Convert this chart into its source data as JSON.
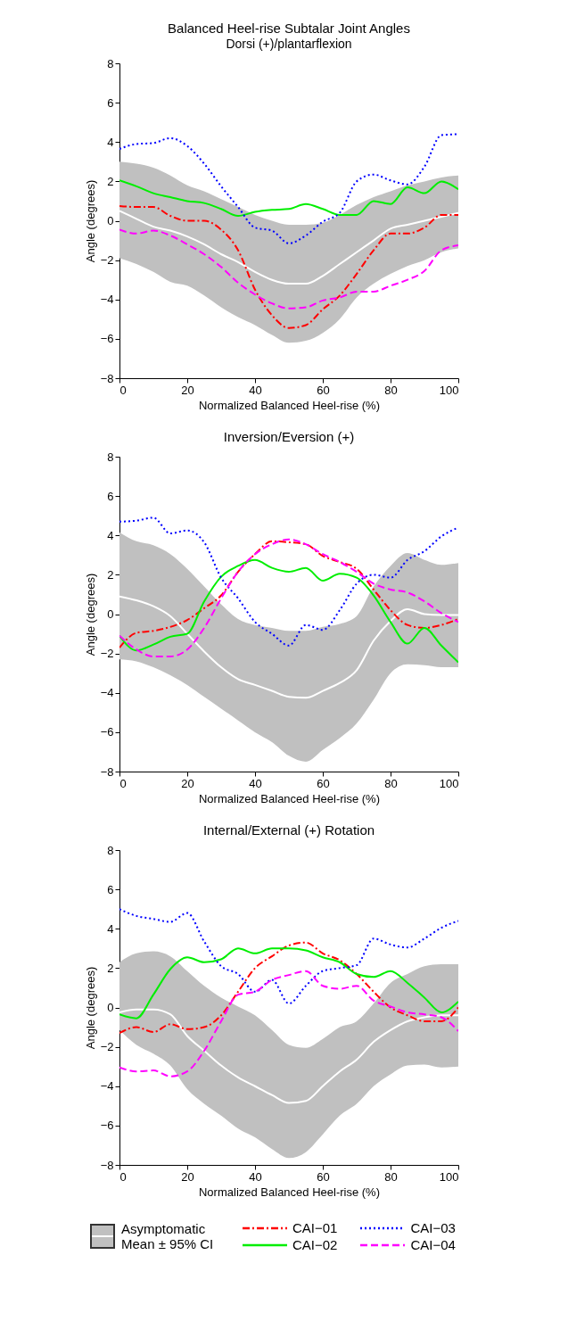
{
  "chart_data": [
    {
      "type": "line",
      "title": "Balanced Heel-rise Subtalar Joint Angles",
      "subtitle": "Dorsi (+)/plantarflexion",
      "xlabel": "Normalized Balanced Heel-rise (%)",
      "ylabel": "Angle (degrees)",
      "xlim": [
        0,
        100
      ],
      "ylim": [
        -8,
        8
      ],
      "xticks": [
        0,
        20,
        40,
        60,
        80,
        100
      ],
      "yticks": [
        -8,
        -6,
        -4,
        -2,
        0,
        2,
        4,
        6,
        8
      ],
      "legend": "bottom",
      "x": [
        0,
        5,
        10,
        15,
        20,
        25,
        30,
        35,
        40,
        45,
        50,
        55,
        60,
        65,
        70,
        75,
        80,
        85,
        90,
        95,
        100
      ],
      "series": [
        {
          "name": "Asymptomatic Mean ± 95% CI",
          "color": "#ffffff",
          "line_style": "solid",
          "values": [
            0.5,
            0.1,
            -0.3,
            -0.5,
            -0.8,
            -1.2,
            -1.7,
            -2.1,
            -2.6,
            -3.0,
            -3.2,
            -3.2,
            -2.8,
            -2.2,
            -1.6,
            -1.0,
            -0.4,
            -0.2,
            0.0,
            0.2,
            0.4
          ],
          "lower": [
            -1.9,
            -2.2,
            -2.6,
            -3.1,
            -3.3,
            -3.8,
            -4.4,
            -4.9,
            -5.3,
            -5.8,
            -6.2,
            -6.1,
            -5.7,
            -5.0,
            -3.9,
            -3.2,
            -2.7,
            -2.3,
            -2.0,
            -1.6,
            -1.4
          ],
          "upper": [
            3.0,
            2.9,
            2.7,
            2.3,
            1.8,
            1.5,
            1.1,
            0.7,
            0.3,
            0.0,
            -0.2,
            -0.2,
            -0.1,
            0.3,
            0.8,
            1.2,
            1.5,
            1.8,
            2.0,
            2.2,
            2.3
          ]
        },
        {
          "name": "CAI−01",
          "color": "#ff0000",
          "line_style": "dashdot",
          "values": [
            0.75,
            0.7,
            0.7,
            0.25,
            0.0,
            0.0,
            -0.45,
            -1.5,
            -3.5,
            -4.8,
            -5.45,
            -5.3,
            -4.5,
            -3.8,
            -2.7,
            -1.5,
            -0.65,
            -0.65,
            -0.35,
            0.3,
            0.3
          ]
        },
        {
          "name": "CAI−02",
          "color": "#00ee00",
          "line_style": "solid",
          "values": [
            2.05,
            1.75,
            1.4,
            1.2,
            1.0,
            0.9,
            0.6,
            0.25,
            0.45,
            0.55,
            0.6,
            0.85,
            0.6,
            0.3,
            0.3,
            1.0,
            0.85,
            1.7,
            1.4,
            2.0,
            1.6
          ]
        },
        {
          "name": "CAI−03",
          "color": "#0000ff",
          "line_style": "dotted",
          "values": [
            3.65,
            3.9,
            3.95,
            4.2,
            3.8,
            2.9,
            1.75,
            0.7,
            -0.35,
            -0.5,
            -1.15,
            -0.75,
            -0.05,
            0.4,
            2.0,
            2.35,
            2.05,
            1.85,
            2.75,
            4.35,
            4.4
          ]
        },
        {
          "name": "CAI−04",
          "color": "#ff00ff",
          "line_style": "dashed",
          "values": [
            -0.45,
            -0.65,
            -0.5,
            -0.75,
            -1.2,
            -1.7,
            -2.35,
            -3.15,
            -3.75,
            -4.2,
            -4.45,
            -4.4,
            -4.05,
            -3.9,
            -3.6,
            -3.6,
            -3.3,
            -3.0,
            -2.55,
            -1.5,
            -1.25
          ]
        }
      ]
    },
    {
      "type": "line",
      "title": "Inversion/Eversion (+)",
      "xlabel": "Normalized Balanced Heel-rise (%)",
      "ylabel": "Angle (degrees)",
      "xlim": [
        0,
        100
      ],
      "ylim": [
        -8,
        8
      ],
      "xticks": [
        0,
        20,
        40,
        60,
        80,
        100
      ],
      "yticks": [
        -8,
        -6,
        -4,
        -2,
        0,
        2,
        4,
        6,
        8
      ],
      "legend": "bottom",
      "x": [
        0,
        5,
        10,
        15,
        20,
        25,
        30,
        35,
        40,
        45,
        50,
        55,
        60,
        65,
        70,
        75,
        80,
        85,
        90,
        95,
        100
      ],
      "series": [
        {
          "name": "Asymptomatic Mean ± 95% CI",
          "color": "#ffffff",
          "line_style": "solid",
          "values": [
            0.9,
            0.7,
            0.4,
            -0.1,
            -1.0,
            -1.9,
            -2.7,
            -3.3,
            -3.6,
            -3.9,
            -4.2,
            -4.25,
            -3.9,
            -3.5,
            -2.85,
            -1.35,
            -0.35,
            0.25,
            0.0,
            -0.05,
            -0.05
          ],
          "lower": [
            -2.3,
            -2.4,
            -2.7,
            -3.1,
            -3.6,
            -4.2,
            -4.8,
            -5.4,
            -6.0,
            -6.5,
            -7.2,
            -7.5,
            -6.9,
            -6.3,
            -5.55,
            -4.35,
            -3.0,
            -2.55,
            -2.6,
            -2.7,
            -2.7
          ],
          "upper": [
            4.15,
            3.7,
            3.5,
            3.05,
            2.3,
            1.4,
            0.5,
            -0.25,
            -0.55,
            -0.7,
            -0.85,
            -0.85,
            -0.65,
            -0.5,
            -0.1,
            1.4,
            2.45,
            3.1,
            2.75,
            2.5,
            2.6
          ]
        },
        {
          "name": "CAI−01",
          "color": "#ff0000",
          "line_style": "dashdot",
          "values": [
            -1.7,
            -0.95,
            -0.85,
            -0.65,
            -0.3,
            0.3,
            0.95,
            2.15,
            3.05,
            3.7,
            3.65,
            3.55,
            2.95,
            2.65,
            2.3,
            1.25,
            0.2,
            -0.55,
            -0.7,
            -0.55,
            -0.25
          ]
        },
        {
          "name": "CAI−02",
          "color": "#00ee00",
          "line_style": "solid",
          "values": [
            -1.1,
            -1.85,
            -1.55,
            -1.15,
            -1.0,
            0.65,
            1.9,
            2.45,
            2.75,
            2.35,
            2.15,
            2.35,
            1.7,
            2.05,
            1.85,
            0.95,
            -0.4,
            -1.5,
            -0.7,
            -1.6,
            -2.45
          ]
        },
        {
          "name": "CAI−03",
          "color": "#0000ff",
          "line_style": "dotted",
          "values": [
            4.7,
            4.75,
            4.9,
            4.1,
            4.25,
            3.65,
            1.85,
            0.8,
            -0.4,
            -1.0,
            -1.6,
            -0.55,
            -0.8,
            0.2,
            1.55,
            2.0,
            1.85,
            2.75,
            3.2,
            3.95,
            4.4
          ]
        },
        {
          "name": "CAI−04",
          "color": "#ff00ff",
          "line_style": "dashed",
          "values": [
            -1.1,
            -1.8,
            -2.15,
            -2.15,
            -1.8,
            -0.7,
            0.8,
            2.15,
            3.05,
            3.55,
            3.8,
            3.55,
            3.05,
            2.65,
            2.15,
            1.55,
            1.25,
            1.1,
            0.65,
            0.05,
            -0.4
          ]
        }
      ]
    },
    {
      "type": "line",
      "title": "Internal/External (+) Rotation",
      "xlabel": "Normalized Balanced Heel-rise (%)",
      "ylabel": "Angle (degrees)",
      "xlim": [
        0,
        100
      ],
      "ylim": [
        -8,
        8
      ],
      "xticks": [
        0,
        20,
        40,
        60,
        80,
        100
      ],
      "yticks": [
        -8,
        -6,
        -4,
        -2,
        0,
        2,
        4,
        6,
        8
      ],
      "legend": "bottom",
      "x": [
        0,
        5,
        10,
        15,
        20,
        25,
        30,
        35,
        40,
        45,
        50,
        55,
        60,
        65,
        70,
        75,
        80,
        85,
        90,
        95,
        100
      ],
      "series": [
        {
          "name": "Asymptomatic Mean ± 95% CI",
          "color": "#ffffff",
          "line_style": "solid",
          "values": [
            -0.25,
            -0.1,
            -0.1,
            -0.35,
            -1.45,
            -2.2,
            -2.95,
            -3.55,
            -4.0,
            -4.45,
            -4.85,
            -4.75,
            -4.0,
            -3.25,
            -2.65,
            -1.75,
            -1.15,
            -0.7,
            -0.5,
            -0.4,
            -0.4
          ],
          "lower": [
            -1.15,
            -1.9,
            -2.35,
            -2.95,
            -4.15,
            -4.9,
            -5.5,
            -6.15,
            -6.6,
            -7.2,
            -7.65,
            -7.35,
            -6.45,
            -5.5,
            -4.9,
            -4.0,
            -3.4,
            -2.95,
            -2.9,
            -3.05,
            -3.0
          ],
          "upper": [
            2.3,
            2.75,
            2.85,
            2.6,
            1.85,
            1.1,
            0.5,
            0.05,
            -0.4,
            -1.15,
            -1.9,
            -2.05,
            -1.6,
            -1.0,
            -0.7,
            0.2,
            1.25,
            1.7,
            2.1,
            2.2,
            2.2
          ]
        },
        {
          "name": "CAI−01",
          "color": "#ff0000",
          "line_style": "dashdot",
          "values": [
            -1.3,
            -1.0,
            -1.25,
            -0.85,
            -1.1,
            -1.0,
            -0.4,
            0.8,
            2.0,
            2.6,
            3.15,
            3.3,
            2.75,
            2.4,
            1.7,
            0.8,
            0.0,
            -0.4,
            -0.7,
            -0.7,
            0.0
          ]
        },
        {
          "name": "CAI−02",
          "color": "#00ee00",
          "line_style": "solid",
          "values": [
            -0.35,
            -0.55,
            0.65,
            1.95,
            2.55,
            2.3,
            2.45,
            3.0,
            2.75,
            3.0,
            3.0,
            2.9,
            2.55,
            2.3,
            1.7,
            1.55,
            1.85,
            1.25,
            0.5,
            -0.25,
            0.3
          ]
        },
        {
          "name": "CAI−03",
          "color": "#0000ff",
          "line_style": "dotted",
          "values": [
            5.0,
            4.65,
            4.5,
            4.35,
            4.8,
            3.35,
            2.1,
            1.7,
            0.8,
            1.4,
            0.2,
            1.1,
            1.85,
            2.0,
            2.15,
            3.5,
            3.2,
            3.05,
            3.5,
            4.05,
            4.4
          ]
        },
        {
          "name": "CAI−04",
          "color": "#ff00ff",
          "line_style": "dashed",
          "values": [
            -3.05,
            -3.25,
            -3.2,
            -3.5,
            -3.25,
            -2.2,
            -0.7,
            0.65,
            0.8,
            1.4,
            1.65,
            1.85,
            1.1,
            0.95,
            1.1,
            0.35,
            0.05,
            -0.25,
            -0.35,
            -0.5,
            -1.2
          ]
        }
      ]
    }
  ]
}
